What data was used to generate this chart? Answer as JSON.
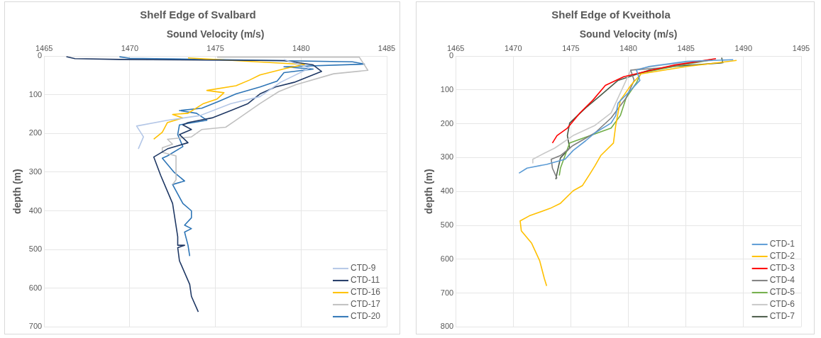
{
  "chart_data": [
    {
      "type": "line",
      "title": "Shelf Edge of Svalbard",
      "xlabel": "Sound Velocity (m/s)",
      "ylabel": "depth (m)",
      "xlim": [
        1465,
        1485
      ],
      "xticks": [
        1465,
        1470,
        1475,
        1480,
        1485
      ],
      "ylim": [
        700,
        0
      ],
      "yticks": [
        0,
        100,
        200,
        300,
        400,
        500,
        600,
        700
      ],
      "grid": true,
      "legend": "bottom right",
      "marker": "none",
      "line_style": "solid",
      "series": [
        {
          "name": "CTD-9",
          "color": "#b4c7e7",
          "x": [
            1479.0,
            1480.5,
            1478.8,
            1477.6,
            1475.9,
            1474.1,
            1472.2,
            1470.4,
            1470.8,
            1470.5
          ],
          "values": [
            9,
            31,
            68,
            105,
            123,
            154,
            166,
            181,
            209,
            240
          ]
        },
        {
          "name": "CTD-11",
          "color": "#1f3864",
          "x": [
            1466.3,
            1466.8,
            1469.4,
            1479.0,
            1480.7,
            1481.2,
            1479.6,
            1478.5,
            1477.6,
            1476.9,
            1475.9,
            1474.8,
            1473.4,
            1473.1,
            1473.6,
            1472.9,
            1473.4,
            1472.2,
            1471.4,
            1471.8,
            1472.5,
            1472.8,
            1472.8,
            1473.2,
            1472.8,
            1472.9,
            1473.5,
            1473.6,
            1474.0
          ],
          "values": [
            2,
            7,
            9,
            12,
            23,
            40,
            68,
            80,
            98,
            123,
            141,
            160,
            172,
            178,
            190,
            203,
            224,
            240,
            261,
            308,
            381,
            467,
            489,
            489,
            495,
            529,
            590,
            621,
            661
          ]
        },
        {
          "name": "CTD-16",
          "color": "#ffc000",
          "x": [
            1473.4,
            1480.2,
            1479.2,
            1477.6,
            1477.0,
            1476.2,
            1474.5,
            1475.5,
            1475.1,
            1474.3,
            1473.4,
            1472.5,
            1473.1,
            1472.2,
            1471.9,
            1471.4
          ],
          "values": [
            5,
            22,
            31,
            49,
            62,
            77,
            89,
            95,
            111,
            123,
            148,
            151,
            160,
            172,
            197,
            215
          ]
        },
        {
          "name": "CTD-17",
          "color": "#c0c0c0",
          "x": [
            1475.1,
            1483.4,
            1483.9,
            1481.9,
            1479.7,
            1478.7,
            1477.6,
            1476.2,
            1475.6,
            1474.2,
            1473.6,
            1472.2,
            1472.5,
            1471.9,
            1471.9,
            1472.7,
            1472.7,
            1472.5
          ],
          "values": [
            3,
            3,
            37,
            46,
            74,
            92,
            123,
            166,
            184,
            190,
            209,
            215,
            228,
            237,
            249,
            258,
            320,
            332
          ]
        },
        {
          "name": "CTD-20",
          "color": "#2e75b6",
          "x": [
            1469.4,
            1470.0,
            1483.0,
            1483.7,
            1479.0,
            1480.7,
            1479.0,
            1478.6,
            1477.6,
            1476.2,
            1475.2,
            1474.2,
            1472.9,
            1473.9,
            1474.5,
            1472.9,
            1472.8,
            1473.1,
            1472.2,
            1471.9,
            1472.6,
            1473.2,
            1472.5,
            1473.1,
            1473.6,
            1473.6,
            1473.2,
            1473.6,
            1473.2,
            1473.4,
            1473.5
          ],
          "values": [
            2,
            6,
            15,
            21,
            28,
            34,
            43,
            65,
            80,
            98,
            117,
            135,
            141,
            148,
            166,
            178,
            203,
            234,
            258,
            264,
            301,
            323,
            332,
            381,
            400,
            418,
            437,
            446,
            455,
            489,
            517
          ]
        }
      ]
    },
    {
      "type": "line",
      "title": "Shelf Edge of Kveithola",
      "xlabel": "Sound Velocity (m/s)",
      "ylabel": "depth (m)",
      "xlim": [
        1465,
        1495
      ],
      "xticks": [
        1465,
        1470,
        1475,
        1480,
        1485,
        1490,
        1495
      ],
      "ylim": [
        800,
        0
      ],
      "yticks": [
        0,
        100,
        200,
        300,
        400,
        500,
        600,
        700,
        800
      ],
      "grid": true,
      "legend": "bottom right",
      "marker": "none",
      "line_style": "solid",
      "series": [
        {
          "name": "CTD-1",
          "color": "#5b9bd5",
          "x": [
            1489.1,
            1485.1,
            1481.8,
            1480.7,
            1481.0,
            1480.2,
            1479.1,
            1478.9,
            1478.5,
            1477.1,
            1476.3,
            1475.2,
            1474.5,
            1472.9,
            1471.2,
            1470.5
          ],
          "values": [
            11,
            16,
            31,
            42,
            72,
            101,
            139,
            176,
            198,
            227,
            250,
            279,
            305,
            320,
            331,
            346
          ]
        },
        {
          "name": "CTD-2",
          "color": "#ffc000",
          "x": [
            1489.4,
            1485.1,
            1481.1,
            1480.2,
            1479.3,
            1479.1,
            1478.9,
            1478.7,
            1477.6,
            1477.1,
            1476.7,
            1476.0,
            1475.2,
            1474.1,
            1473.2,
            1471.4,
            1470.6,
            1470.7,
            1471.6,
            1472.3,
            1472.7,
            1472.9
          ],
          "values": [
            13,
            31,
            53,
            87,
            131,
            168,
            205,
            257,
            294,
            324,
            346,
            383,
            398,
            435,
            450,
            472,
            487,
            516,
            553,
            605,
            657,
            679
          ]
        },
        {
          "name": "CTD-3",
          "color": "#ff0000",
          "x": [
            1487.6,
            1484.0,
            1482.0,
            1479.6,
            1478.0,
            1476.9,
            1475.8,
            1474.7,
            1473.8,
            1473.4
          ],
          "values": [
            8,
            27,
            42,
            61,
            87,
            131,
            168,
            213,
            235,
            257
          ]
        },
        {
          "name": "CTD-4",
          "color": "#7f7f7f",
          "x": [
            1487.1,
            1482.9,
            1480.2,
            1480.5,
            1479.8,
            1478.5,
            1477.1,
            1475.2,
            1474.1,
            1473.3,
            1473.4,
            1473.8
          ],
          "values": [
            11,
            35,
            42,
            72,
            124,
            183,
            227,
            264,
            294,
            305,
            331,
            361
          ]
        },
        {
          "name": "CTD-5",
          "color": "#70ad47",
          "x": [
            1487.3,
            1484.0,
            1481.1,
            1480.7,
            1479.8,
            1479.3,
            1478.5,
            1476.7,
            1474.9,
            1474.5,
            1474.1,
            1474.0
          ],
          "values": [
            11,
            31,
            50,
            79,
            124,
            176,
            213,
            235,
            257,
            294,
            331,
            353
          ]
        },
        {
          "name": "CTD-6",
          "color": "#c9c9c9",
          "x": [
            1487.0,
            1482.9,
            1480.2,
            1479.8,
            1479.3,
            1478.5,
            1477.1,
            1475.2,
            1473.6,
            1472.7,
            1471.7,
            1471.7
          ],
          "values": [
            13,
            27,
            42,
            72,
            109,
            168,
            205,
            235,
            272,
            287,
            305,
            316
          ]
        },
        {
          "name": "CTD-7",
          "color": "#4a5a48",
          "x": [
            1488.1,
            1488.2,
            1484.0,
            1481.8,
            1479.1,
            1477.6,
            1476.3,
            1474.9,
            1474.7,
            1474.9,
            1474.1,
            1473.8,
            1473.7
          ],
          "values": [
            5,
            20,
            31,
            42,
            72,
            116,
            153,
            198,
            235,
            272,
            301,
            346,
            364
          ]
        }
      ]
    }
  ]
}
